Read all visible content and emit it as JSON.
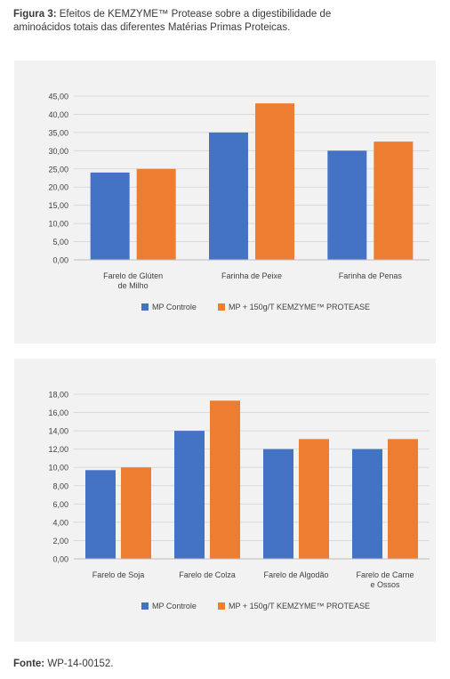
{
  "caption": {
    "prefix": "Figura 3:",
    "text": "Efeitos de KEMZYME™ Protease sobre a digestibilidade de aminoácidos totais das diferentes Matérias Primas Proteicas."
  },
  "source": {
    "prefix": "Fonte:",
    "text": "WP-14-00152."
  },
  "colors": {
    "series_1": "#4472c4",
    "series_2": "#ed7d31",
    "panel_background": "#f2f2f2",
    "grid": "#d9d9d9"
  },
  "chart_data": [
    {
      "type": "bar",
      "categories": [
        "Farelo de Glúten de Milho",
        "Farinha de Peixe",
        "Farinha de Penas"
      ],
      "category_lines": [
        [
          "Farelo de Glúten",
          "de Milho"
        ],
        [
          "Farinha de Peixe"
        ],
        [
          "Farinha de Penas"
        ]
      ],
      "series": [
        {
          "name": "MP Controle",
          "values": [
            24.0,
            35.0,
            30.0
          ]
        },
        {
          "name": "MP + 150g/T KEMZYME™ PROTEASE",
          "values": [
            25.0,
            43.0,
            32.5
          ]
        }
      ],
      "yticks": [
        "0,00",
        "5,00",
        "10,00",
        "15,00",
        "20,00",
        "25,00",
        "30,00",
        "35,00",
        "40,00",
        "45,00"
      ],
      "ylim": [
        0,
        45
      ],
      "grid": true,
      "legend": "bottom"
    },
    {
      "type": "bar",
      "categories": [
        "Farelo de Soja",
        "Farelo de Colza",
        "Farelo de Algodão",
        "Farelo de Carne e Ossos"
      ],
      "category_lines": [
        [
          "Farelo de Soja"
        ],
        [
          "Farelo de Colza"
        ],
        [
          "Farelo de Algodão"
        ],
        [
          "Farelo de Carne",
          "e Ossos"
        ]
      ],
      "series": [
        {
          "name": "MP Controle",
          "values": [
            9.7,
            14.0,
            12.0,
            12.0
          ]
        },
        {
          "name": "MP + 150g/T KEMZYME™ PROTEASE",
          "values": [
            10.0,
            17.3,
            13.1,
            13.1
          ]
        }
      ],
      "yticks": [
        "0,00",
        "2,00",
        "4,00",
        "6,00",
        "8,00",
        "10,00",
        "12,00",
        "14,00",
        "16,00",
        "18,00"
      ],
      "ylim": [
        0,
        18
      ],
      "grid": true,
      "legend": "bottom"
    }
  ]
}
